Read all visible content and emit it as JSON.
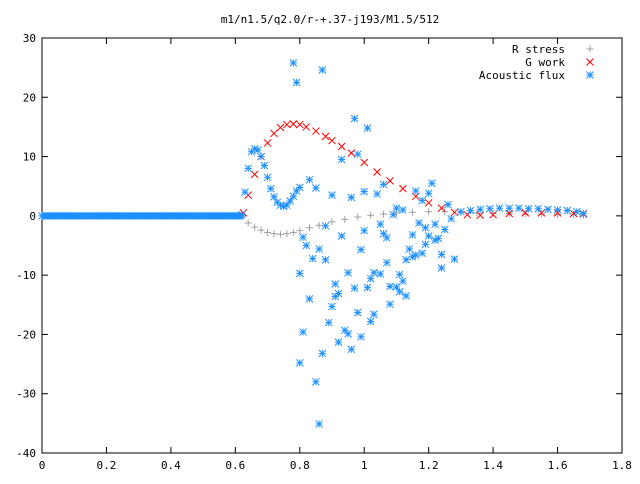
{
  "chart_data": {
    "type": "scatter",
    "title": "m1/n1.5/q2.0/r-+.37-j193/M1.5/512",
    "xlabel": "",
    "ylabel": "",
    "xlim": [
      0,
      1.8
    ],
    "ylim": [
      -40,
      30
    ],
    "grid": false,
    "legend_position": "top-right",
    "x_ticks": [
      0,
      0.2,
      0.4,
      0.6,
      0.8,
      1,
      1.2,
      1.4,
      1.6,
      1.8
    ],
    "x_tick_labels": [
      "0",
      "0.2",
      "0.4",
      "0.6",
      "0.8",
      "1",
      "1.2",
      "1.4",
      "1.6",
      "1.8"
    ],
    "y_ticks": [
      -40,
      -30,
      -20,
      -10,
      0,
      10,
      20,
      30
    ],
    "y_tick_labels": [
      "-40",
      "-30",
      "-20",
      "-10",
      "0",
      "10",
      "20",
      "30"
    ],
    "series": [
      {
        "name": "R stress",
        "marker": "plus",
        "color": "#a0a0a0",
        "x": [
          0.625,
          0.64,
          0.66,
          0.68,
          0.7,
          0.72,
          0.74,
          0.76,
          0.78,
          0.8,
          0.83,
          0.86,
          0.9,
          0.94,
          0.98,
          1.02,
          1.06,
          1.1,
          1.15,
          1.2,
          1.25,
          1.3,
          1.35,
          1.4,
          1.45,
          1.5,
          1.55,
          1.6,
          1.65,
          1.68
        ],
        "y": [
          0.0,
          -1.2,
          -1.9,
          -2.4,
          -2.8,
          -3.0,
          -3.1,
          -3.0,
          -2.8,
          -2.5,
          -2.0,
          -1.6,
          -1.0,
          -0.6,
          -0.2,
          0.1,
          0.3,
          0.5,
          0.6,
          0.7,
          0.7,
          0.6,
          0.5,
          0.4,
          0.4,
          0.3,
          0.3,
          0.2,
          0.2,
          0.1
        ]
      },
      {
        "name": "G work",
        "marker": "cross",
        "color": "#ff0000",
        "x": [
          0.625,
          0.64,
          0.66,
          0.68,
          0.7,
          0.72,
          0.74,
          0.76,
          0.78,
          0.8,
          0.82,
          0.85,
          0.88,
          0.9,
          0.93,
          0.96,
          1.0,
          1.04,
          1.08,
          1.12,
          1.16,
          1.2,
          1.24,
          1.28,
          1.32,
          1.36,
          1.4,
          1.45,
          1.5,
          1.55,
          1.6,
          1.65,
          1.68
        ],
        "y": [
          0.5,
          3.5,
          7.0,
          10.0,
          12.3,
          13.9,
          14.9,
          15.4,
          15.5,
          15.4,
          15.0,
          14.3,
          13.4,
          12.7,
          11.7,
          10.6,
          9.0,
          7.4,
          5.9,
          4.6,
          3.3,
          2.2,
          1.3,
          0.6,
          0.2,
          0.1,
          0.2,
          0.4,
          0.5,
          0.5,
          0.5,
          0.4,
          0.3
        ]
      },
      {
        "name": "Acoustic flux",
        "marker": "star",
        "color": "#1e90ff",
        "x": [
          0.0,
          0.03,
          0.06,
          0.09,
          0.12,
          0.15,
          0.18,
          0.21,
          0.24,
          0.27,
          0.3,
          0.33,
          0.36,
          0.39,
          0.42,
          0.45,
          0.48,
          0.51,
          0.54,
          0.57,
          0.6,
          0.62,
          0.63,
          0.64,
          0.65,
          0.66,
          0.67,
          0.68,
          0.69,
          0.7,
          0.71,
          0.72,
          0.73,
          0.74,
          0.75,
          0.76,
          0.77,
          0.78,
          0.79,
          0.8,
          0.78,
          0.79,
          0.8,
          0.81,
          0.82,
          0.83,
          0.84,
          0.85,
          0.86,
          0.87,
          0.88,
          0.89,
          0.9,
          0.91,
          0.92,
          0.93,
          0.94,
          0.95,
          0.96,
          0.97,
          0.98,
          0.99,
          1.0,
          1.01,
          1.02,
          1.03,
          1.04,
          1.05,
          1.06,
          1.07,
          1.08,
          1.09,
          1.1,
          1.11,
          1.12,
          1.13,
          1.14,
          1.15,
          1.16,
          1.17,
          1.18,
          1.19,
          1.2,
          1.21,
          1.22,
          1.23,
          1.24,
          1.25,
          1.26,
          1.27,
          0.8,
          0.81,
          0.87,
          0.92,
          0.95,
          0.98,
          1.0,
          1.05,
          1.1,
          1.15,
          1.2,
          0.85,
          0.9,
          0.99,
          1.02,
          1.08,
          1.13,
          1.18,
          1.24,
          0.83,
          0.88,
          0.93,
          0.97,
          1.03,
          1.06,
          1.11,
          1.16,
          1.22,
          0.86,
          0.91,
          0.96,
          1.01,
          1.07,
          1.12,
          1.19,
          1.28,
          1.3,
          1.33,
          1.36,
          1.39,
          1.42,
          1.45,
          1.48,
          1.51,
          1.54,
          1.57,
          1.6,
          1.63,
          1.66,
          1.68
        ],
        "y": [
          0,
          0,
          0,
          0,
          0,
          0,
          0,
          0,
          0,
          0,
          0,
          0,
          0,
          0,
          0,
          0,
          0,
          0,
          0,
          0,
          0,
          0.2,
          4.0,
          8.0,
          10.8,
          11.3,
          11.1,
          10.0,
          8.5,
          6.5,
          4.6,
          3.2,
          2.3,
          1.8,
          1.6,
          1.8,
          2.5,
          3.3,
          4.2,
          4.8,
          25.8,
          22.5,
          -9.7,
          -3.6,
          -5.0,
          6.1,
          -7.2,
          4.7,
          -5.6,
          24.6,
          -1.7,
          -18.0,
          3.5,
          -13.6,
          -13.1,
          -3.4,
          -19.3,
          -9.6,
          3.1,
          16.4,
          10.4,
          -5.7,
          -2.5,
          14.8,
          -10.6,
          -9.6,
          3.7,
          -1.4,
          -3.0,
          -7.9,
          -11.9,
          0.2,
          1.3,
          -9.9,
          -11.0,
          -7.4,
          -5.6,
          -3.2,
          4.2,
          -1.2,
          2.6,
          -4.8,
          3.8,
          5.5,
          -1.4,
          -3.8,
          -6.5,
          -2.3,
          1.9,
          -0.5,
          -24.8,
          -19.6,
          -23.2,
          -21.3,
          -19.9,
          -16.3,
          4.1,
          -9.8,
          -12.0,
          -6.9,
          -3.4,
          -28.0,
          -15.3,
          -20.4,
          -17.8,
          -14.9,
          -13.5,
          -6.3,
          -8.8,
          -14.0,
          -7.4,
          9.5,
          -12.2,
          -16.6,
          5.3,
          -12.8,
          -6.6,
          -4.1,
          -35.1,
          -11.5,
          -22.5,
          -12.1,
          -3.7,
          1.0,
          -2.0,
          -7.3,
          0.7,
          0.9,
          1.1,
          1.2,
          1.3,
          1.3,
          1.3,
          1.2,
          1.2,
          1.1,
          1.0,
          0.9,
          0.7,
          0.4
        ]
      }
    ]
  }
}
